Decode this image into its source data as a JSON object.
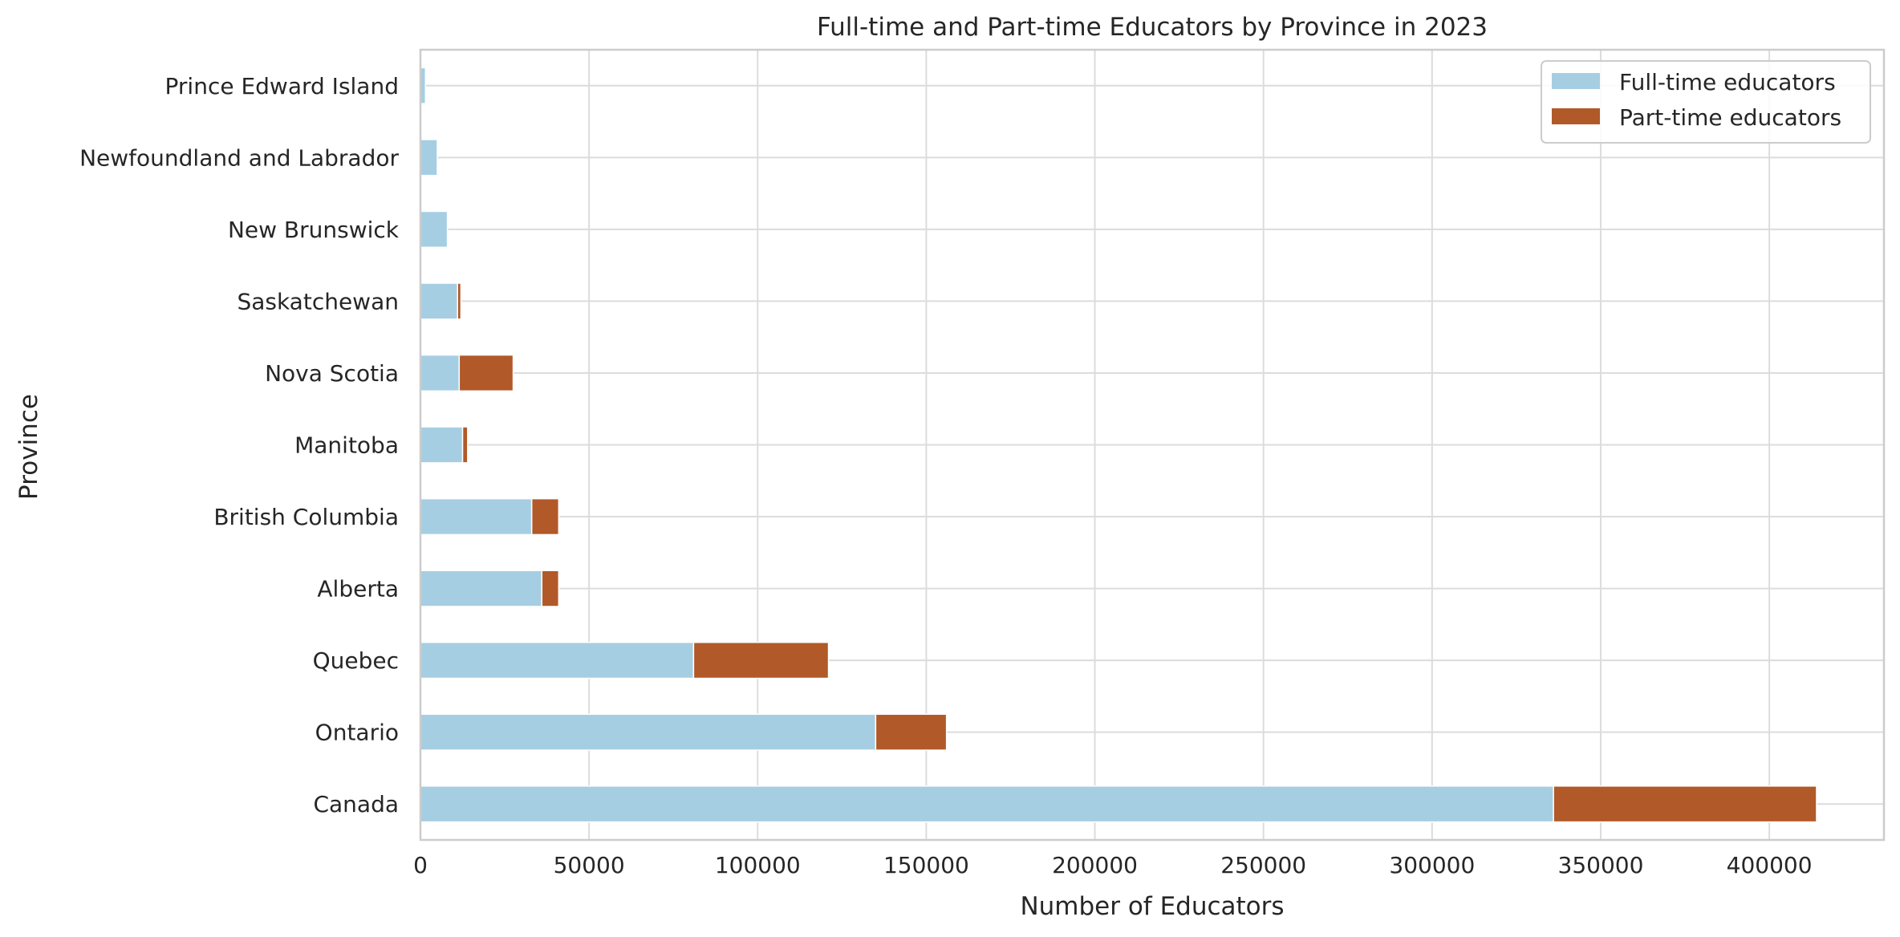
{
  "chart_data": {
    "type": "bar",
    "orientation": "horizontal",
    "stacked": true,
    "title": "Full-time and Part-time Educators by Province in 2023",
    "xlabel": "Number of Educators",
    "ylabel": "Province",
    "xlim": [
      0,
      434000
    ],
    "xticks": [
      0,
      50000,
      100000,
      150000,
      200000,
      250000,
      300000,
      350000,
      400000
    ],
    "grid": true,
    "legend_position": "top-right",
    "categories": [
      "Prince Edward Island",
      "Newfoundland and Labrador",
      "New Brunswick",
      "Saskatchewan",
      "Nova Scotia",
      "Manitoba",
      "British Columbia",
      "Alberta",
      "Quebec",
      "Ontario",
      "Canada"
    ],
    "series": [
      {
        "name": "Full-time educators",
        "color": "#a6cee3",
        "values": [
          1500,
          5000,
          8000,
          11000,
          11500,
          12500,
          33000,
          36000,
          81000,
          135000,
          336000
        ]
      },
      {
        "name": "Part-time educators",
        "color": "#b15928",
        "values": [
          0,
          0,
          0,
          1000,
          16000,
          1500,
          8000,
          5000,
          40000,
          21000,
          78000
        ]
      }
    ]
  }
}
